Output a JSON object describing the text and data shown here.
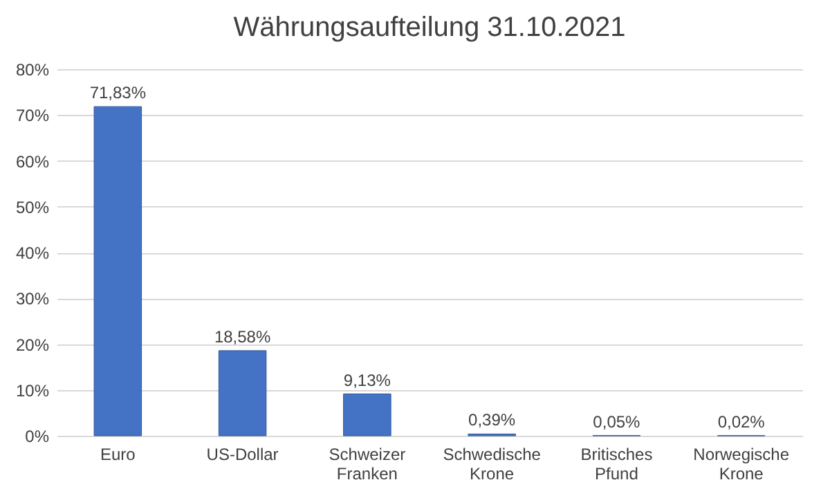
{
  "chart_data": {
    "type": "bar",
    "title": "Währungsaufteilung 31.10.2021",
    "categories": [
      "Euro",
      "US-Dollar",
      "Schweizer Franken",
      "Schwedische Krone",
      "Britisches Pfund",
      "Norwegische Krone"
    ],
    "values": [
      71.83,
      18.58,
      9.13,
      0.39,
      0.05,
      0.02
    ],
    "value_labels": [
      "71,83%",
      "18,58%",
      "9,13%",
      "0,39%",
      "0,05%",
      "0,02%"
    ],
    "color": "#4472c4",
    "ylim": [
      0,
      80
    ],
    "yticks": [
      {
        "value": 0,
        "label": "0%"
      },
      {
        "value": 10,
        "label": "10%"
      },
      {
        "value": 20,
        "label": "20%"
      },
      {
        "value": 30,
        "label": "30%"
      },
      {
        "value": 40,
        "label": "40%"
      },
      {
        "value": 50,
        "label": "50%"
      },
      {
        "value": 60,
        "label": "60%"
      },
      {
        "value": 70,
        "label": "70%"
      },
      {
        "value": 80,
        "label": "80%"
      }
    ],
    "grid": "y"
  }
}
